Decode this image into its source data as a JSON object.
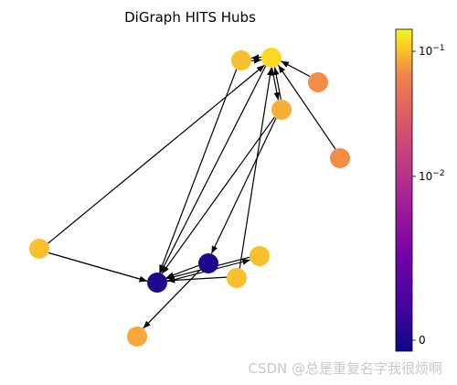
{
  "chart_data": {
    "type": "network",
    "title": "DiGraph HITS Hubs",
    "directed": true,
    "nodes": [
      {
        "id": "n0",
        "hub": 0.1
      },
      {
        "id": "n1",
        "hub": 0.12
      },
      {
        "id": "n2",
        "hub": 0.07
      },
      {
        "id": "n3",
        "hub": 0.09
      },
      {
        "id": "n4",
        "hub": 0.07
      },
      {
        "id": "n5",
        "hub": 0.1
      },
      {
        "id": "n6",
        "hub": 0.085
      },
      {
        "id": "n7",
        "hub": 0.1
      },
      {
        "id": "n8",
        "hub": 0.0005
      },
      {
        "id": "n9",
        "hub": 0.0005
      },
      {
        "id": "n10",
        "hub": 0.1
      }
    ],
    "edges": [
      [
        "n0",
        "n1"
      ],
      [
        "n1",
        "n0"
      ],
      [
        "n2",
        "n1"
      ],
      [
        "n4",
        "n1"
      ],
      [
        "n3",
        "n1"
      ],
      [
        "n0",
        "n8"
      ],
      [
        "n1",
        "n8"
      ],
      [
        "n3",
        "n8"
      ],
      [
        "n5",
        "n8"
      ],
      [
        "n1",
        "n3"
      ],
      [
        "n3",
        "n9"
      ],
      [
        "n7",
        "n1"
      ],
      [
        "n5",
        "n1"
      ],
      [
        "n5",
        "n8"
      ],
      [
        "n9",
        "n6"
      ],
      [
        "n9",
        "n8"
      ],
      [
        "n7",
        "n8"
      ],
      [
        "n10",
        "n8"
      ],
      [
        "n8",
        "n10"
      ]
    ],
    "colorbar": {
      "colormap": "plasma",
      "scale": "log",
      "range": [
        0,
        0.15
      ],
      "ticks": [
        {
          "value": 0.1,
          "base": "10",
          "exp": "−1"
        },
        {
          "value": 0.01,
          "base": "10",
          "exp": "−2"
        },
        {
          "value": 0,
          "label": "0"
        }
      ]
    }
  },
  "watermark": "CSDN @总是重复名字我很烦啊"
}
